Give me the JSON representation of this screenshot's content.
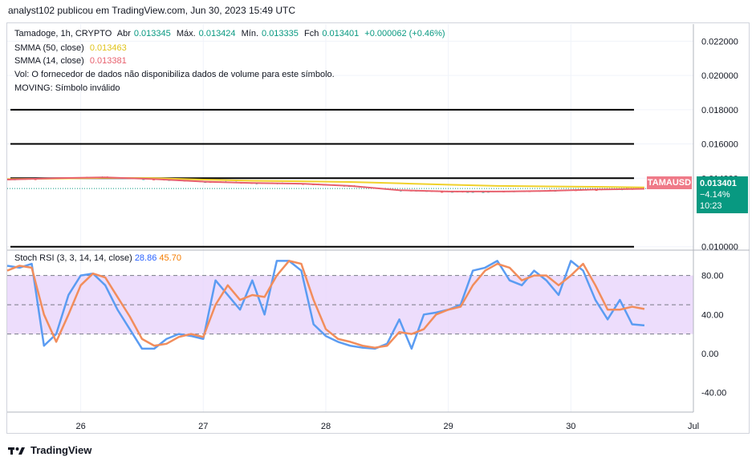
{
  "header": "analyst102 publicou em TradingView.com, Jun 30, 2023 15:49 UTC",
  "legend": {
    "symbol": "Tamadoge, 1h, CRYPTO",
    "open_label": "Abr",
    "open": "0.013345",
    "high_label": "Máx.",
    "high": "0.013424",
    "low_label": "Mín.",
    "low": "0.013335",
    "close_label": "Fch",
    "close": "0.013401",
    "change": "+0.000062 (+0.46%)",
    "smma50_label": "SMMA (50, close)",
    "smma50_value": "0.013463",
    "smma14_label": "SMMA (14, close)",
    "smma14_value": "0.013381",
    "vol_note": "Vol: O fornecedor de dados não disponibiliza dados de volume para este símbolo.",
    "moving_note": "MOVING: Símbolo inválido"
  },
  "price_tag": {
    "ticker": "TAMAUSD",
    "price": "0.013401",
    "change": "−4.14%",
    "countdown": "10:23"
  },
  "rsi_legend": {
    "label": "Stoch RSI (3, 3, 14, 14, close)",
    "k": "28.86",
    "d": "45.70"
  },
  "colors": {
    "smma50": "#f0d12b",
    "smma14": "#e8616e",
    "candle_up": "#26a69a",
    "candle_down": "#ef5350",
    "k_line": "#5b9cf2",
    "d_line": "#f28d5c",
    "rsi_band": "#e8d5fb"
  },
  "footer": "TradingView",
  "chart_data": [
    {
      "type": "line",
      "title": "",
      "yaxis_ticks": [
        "0.022000",
        "0.020000",
        "0.018000",
        "0.016000",
        "0.014000",
        "0.010000"
      ],
      "ylim": [
        0.0098,
        0.023
      ],
      "xaxis_ticks": [
        "26",
        "27",
        "28",
        "29",
        "30",
        "Jul"
      ],
      "horizontal_levels": [
        0.018,
        0.016,
        0.014,
        0.01
      ],
      "series": [
        {
          "name": "SMMA (50, close)",
          "x": [
            25.4,
            25.8,
            26.2,
            26.6,
            27.0,
            27.4,
            27.8,
            28.2,
            28.6,
            29.0,
            29.4,
            29.8,
            30.2,
            30.6
          ],
          "values": [
            0.01395,
            0.01398,
            0.01402,
            0.014,
            0.01392,
            0.01385,
            0.01382,
            0.01378,
            0.0137,
            0.01362,
            0.01355,
            0.01352,
            0.0135,
            0.01346
          ]
        },
        {
          "name": "SMMA (14, close)",
          "x": [
            25.4,
            25.8,
            26.2,
            26.6,
            27.0,
            27.4,
            27.8,
            28.2,
            28.6,
            29.0,
            29.4,
            29.8,
            30.2,
            30.6
          ],
          "values": [
            0.01392,
            0.014,
            0.01405,
            0.01395,
            0.0138,
            0.01372,
            0.01368,
            0.01355,
            0.0133,
            0.01322,
            0.01322,
            0.01326,
            0.01334,
            0.01338
          ]
        }
      ]
    },
    {
      "type": "line",
      "title": "",
      "yaxis_ticks": [
        "80.00",
        "40.00",
        "0.00",
        "-40.00"
      ],
      "ylim": [
        -60,
        106
      ],
      "bands": [
        20,
        50,
        80
      ],
      "series": [
        {
          "name": "K",
          "x": [
            25.4,
            25.5,
            25.6,
            25.7,
            25.8,
            25.9,
            26.0,
            26.1,
            26.2,
            26.3,
            26.4,
            26.5,
            26.6,
            26.7,
            26.8,
            26.9,
            27.0,
            27.1,
            27.2,
            27.3,
            27.4,
            27.5,
            27.6,
            27.7,
            27.8,
            27.9,
            28.0,
            28.1,
            28.2,
            28.3,
            28.4,
            28.5,
            28.6,
            28.7,
            28.8,
            28.9,
            29.0,
            29.1,
            29.2,
            29.3,
            29.4,
            29.5,
            29.6,
            29.7,
            29.8,
            29.9,
            30.0,
            30.1,
            30.2,
            30.3,
            30.4,
            30.5,
            30.6
          ],
          "values": [
            90,
            88,
            92,
            8,
            20,
            60,
            80,
            82,
            70,
            45,
            25,
            5,
            5,
            15,
            20,
            18,
            15,
            75,
            60,
            45,
            75,
            40,
            95,
            95,
            85,
            30,
            18,
            12,
            8,
            6,
            5,
            10,
            35,
            5,
            40,
            42,
            45,
            50,
            85,
            88,
            95,
            75,
            70,
            85,
            75,
            60,
            95,
            85,
            55,
            35,
            55,
            30,
            28.86
          ]
        },
        {
          "name": "D",
          "x": [
            25.4,
            25.5,
            25.6,
            25.7,
            25.8,
            25.9,
            26.0,
            26.1,
            26.2,
            26.3,
            26.4,
            26.5,
            26.6,
            26.7,
            26.8,
            26.9,
            27.0,
            27.1,
            27.2,
            27.3,
            27.4,
            27.5,
            27.6,
            27.7,
            27.8,
            27.9,
            28.0,
            28.1,
            28.2,
            28.3,
            28.4,
            28.5,
            28.6,
            28.7,
            28.8,
            28.9,
            29.0,
            29.1,
            29.2,
            29.3,
            29.4,
            29.5,
            29.6,
            29.7,
            29.8,
            29.9,
            30.0,
            30.1,
            30.2,
            30.3,
            30.4,
            30.5,
            30.6
          ],
          "values": [
            85,
            90,
            88,
            40,
            12,
            40,
            70,
            82,
            78,
            58,
            38,
            15,
            8,
            10,
            17,
            20,
            17,
            50,
            70,
            55,
            60,
            58,
            80,
            95,
            92,
            55,
            25,
            15,
            12,
            8,
            6,
            8,
            22,
            20,
            25,
            40,
            45,
            48,
            70,
            85,
            92,
            88,
            75,
            80,
            80,
            70,
            80,
            92,
            70,
            45,
            45,
            48,
            45.7
          ]
        }
      ]
    }
  ]
}
